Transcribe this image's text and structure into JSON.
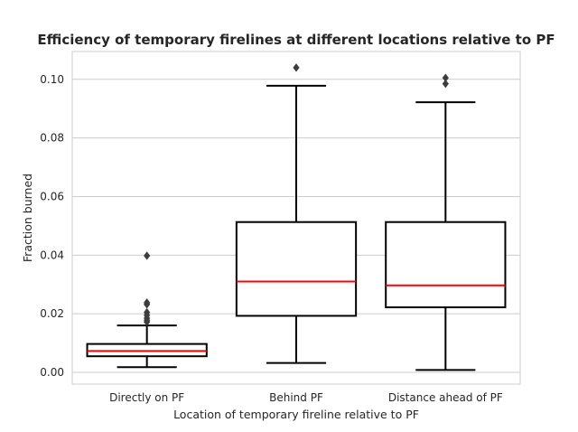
{
  "chart_data": {
    "type": "box",
    "title": "Efficiency of temporary firelines at different locations relative to PF",
    "xlabel": "Location of temporary fireline relative to PF",
    "ylabel": "Fraction burned",
    "ylim": [
      -0.004,
      0.1095
    ],
    "yticks": [
      0.0,
      0.02,
      0.04,
      0.06,
      0.08,
      0.1
    ],
    "ytick_labels": [
      "0.00",
      "0.02",
      "0.04",
      "0.06",
      "0.08",
      "0.10"
    ],
    "grid": "y",
    "categories": [
      "Directly on PF",
      "Behind PF",
      "Distance ahead of PF"
    ],
    "boxes": [
      {
        "category": "Directly on PF",
        "whisker_low": 0.0018,
        "q1": 0.0055,
        "median": 0.0073,
        "q3": 0.0097,
        "whisker_high": 0.016,
        "outliers": [
          0.0172,
          0.0178,
          0.0185,
          0.0195,
          0.0205,
          0.0232,
          0.0238,
          0.0398
        ]
      },
      {
        "category": "Behind PF",
        "whisker_low": 0.0032,
        "q1": 0.0193,
        "median": 0.031,
        "q3": 0.0513,
        "whisker_high": 0.0978,
        "outliers": [
          0.104
        ]
      },
      {
        "category": "Distance ahead of PF",
        "whisker_low": 0.0008,
        "q1": 0.0222,
        "median": 0.0297,
        "q3": 0.0513,
        "whisker_high": 0.0922,
        "outliers": [
          0.0985,
          0.1005
        ]
      }
    ],
    "colors": {
      "box": "#000000",
      "median": "#ff0000",
      "grid": "#cccccc",
      "outlier": "#3d3d3d",
      "frame": "#cccccc"
    }
  }
}
